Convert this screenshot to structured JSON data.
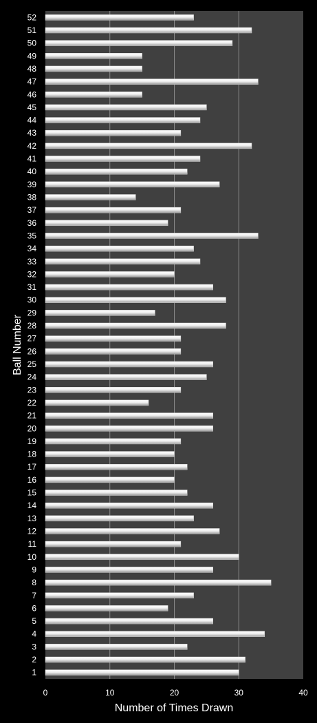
{
  "chart_data": {
    "type": "bar",
    "orientation": "horizontal",
    "title": "",
    "xlabel": "Number of Times Drawn",
    "ylabel": "Ball Number",
    "xlim": [
      0,
      40
    ],
    "xticks": [
      0,
      10,
      20,
      30,
      40
    ],
    "grid": "vertical",
    "legend": "none",
    "colors": {
      "background": "#000000",
      "plot_area": "#404040",
      "bar": "#e8e8e8",
      "gridline": "#8a8a8a",
      "text": "#ffffff"
    },
    "categories": [
      "1",
      "2",
      "3",
      "4",
      "5",
      "6",
      "7",
      "8",
      "9",
      "10",
      "11",
      "12",
      "13",
      "14",
      "15",
      "16",
      "17",
      "18",
      "19",
      "20",
      "21",
      "22",
      "23",
      "24",
      "25",
      "26",
      "27",
      "28",
      "29",
      "30",
      "31",
      "32",
      "33",
      "34",
      "35",
      "36",
      "37",
      "38",
      "39",
      "40",
      "41",
      "42",
      "43",
      "44",
      "45",
      "46",
      "47",
      "48",
      "49",
      "50",
      "51",
      "52"
    ],
    "values": [
      30,
      31,
      22,
      34,
      26,
      19,
      23,
      35,
      26,
      30,
      21,
      27,
      23,
      26,
      22,
      20,
      22,
      20,
      21,
      26,
      26,
      16,
      21,
      25,
      26,
      21,
      21,
      28,
      17,
      28,
      26,
      20,
      24,
      23,
      33,
      19,
      21,
      14,
      27,
      22,
      24,
      32,
      21,
      24,
      25,
      15,
      33,
      15,
      15,
      29,
      32,
      23
    ]
  }
}
